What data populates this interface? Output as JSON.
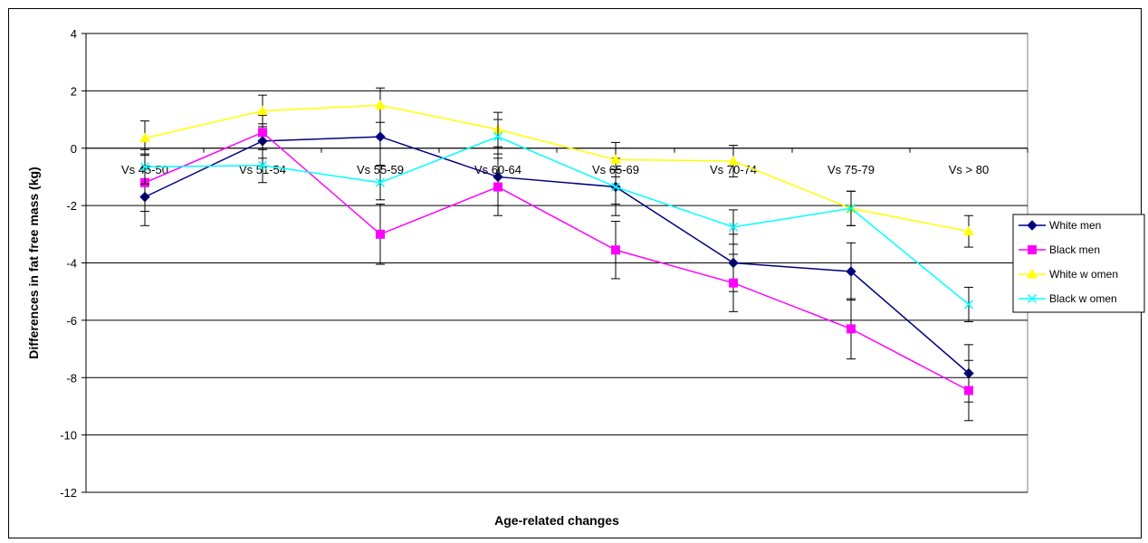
{
  "chart_data": {
    "type": "line",
    "xlabel": "Age-related changes",
    "ylabel": "Differences in fat free mass (kg)",
    "ylim": [
      -12,
      4
    ],
    "y_ticks": [
      4,
      2,
      0,
      -2,
      -4,
      -6,
      -8,
      -10,
      -12
    ],
    "grid": true,
    "legend_position": "right",
    "categories": [
      "Vs 45-50",
      "Vs 51-54",
      "Vs 55-59",
      "Vs 60-64",
      "Vs 65-69",
      "Vs 70-74",
      "Vs 75-79",
      "Vs > 80"
    ],
    "series": [
      {
        "name": "White men",
        "color": "#000080",
        "marker": "diamond",
        "values": [
          -1.7,
          0.25,
          0.4,
          -1.0,
          -1.35,
          -4.0,
          -4.3,
          -7.85
        ],
        "err": [
          1.0,
          0.6,
          1.0,
          1.0,
          1.0,
          1.0,
          1.0,
          1.0
        ]
      },
      {
        "name": "Black men",
        "color": "#FF00FF",
        "marker": "square",
        "values": [
          -1.2,
          0.55,
          -3.0,
          -1.35,
          -3.55,
          -4.7,
          -6.3,
          -8.45
        ],
        "err": [
          1.0,
          0.6,
          1.05,
          1.0,
          1.0,
          1.0,
          1.05,
          1.05
        ]
      },
      {
        "name": "White w omen",
        "color": "#FFFF00",
        "marker": "triangle",
        "values": [
          0.35,
          1.3,
          1.5,
          0.65,
          -0.4,
          -0.45,
          -2.1,
          -2.9
        ],
        "err": [
          0.6,
          0.55,
          0.6,
          0.6,
          0.6,
          0.55,
          0.6,
          0.55
        ]
      },
      {
        "name": "Black w omen",
        "color": "#00FFFF",
        "marker": "x",
        "values": [
          -0.65,
          -0.6,
          -1.2,
          0.4,
          -1.35,
          -2.75,
          -2.1,
          -5.45
        ],
        "err": [
          0.6,
          0.6,
          0.6,
          0.6,
          0.6,
          0.6,
          0.6,
          0.6
        ]
      }
    ]
  }
}
